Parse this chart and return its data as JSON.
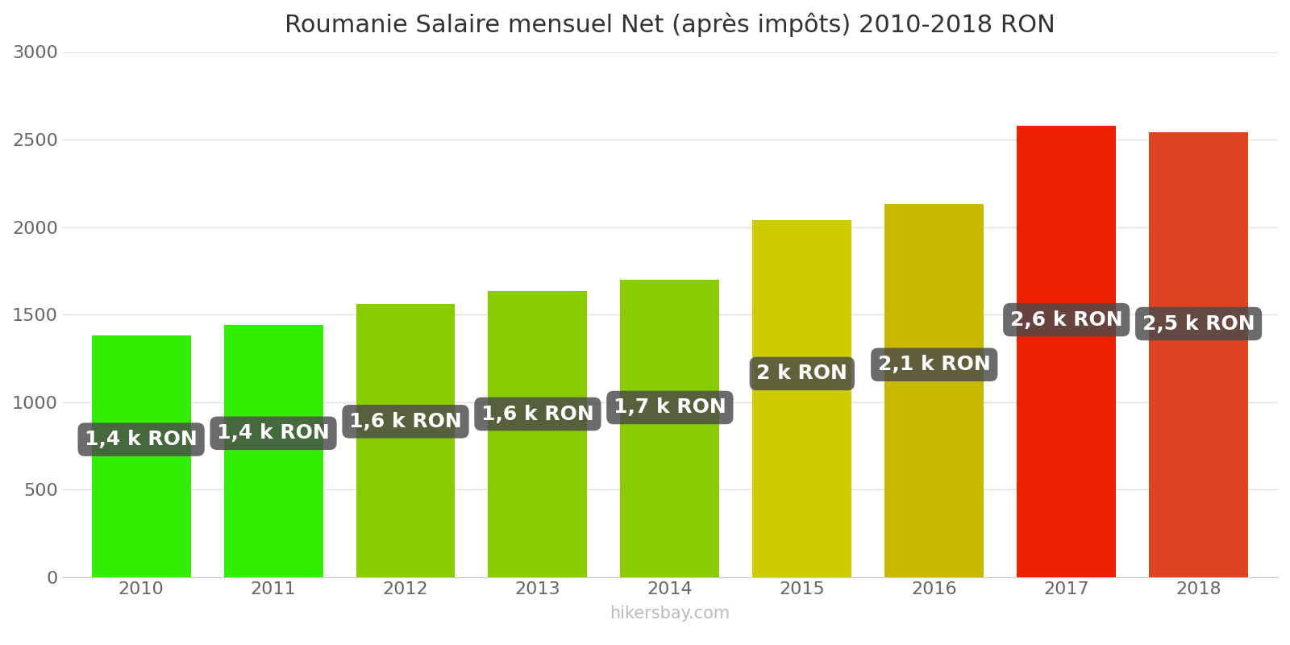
{
  "title": "Roumanie Salaire mensuel Net (après impôts) 2010-2018 RON",
  "years": [
    2010,
    2011,
    2012,
    2013,
    2014,
    2015,
    2016,
    2017,
    2018
  ],
  "values": [
    1380,
    1443,
    1560,
    1635,
    1700,
    2040,
    2130,
    2580,
    2540
  ],
  "bar_colors": [
    "#33ee00",
    "#33ee00",
    "#88cc00",
    "#88cc00",
    "#88cc00",
    "#cccc00",
    "#c8b800",
    "#ee2200",
    "#dd4422"
  ],
  "labels": [
    "1,4 k RON",
    "1,4 k RON",
    "1,6 k RON",
    "1,6 k RON",
    "1,7 k RON",
    "2 k RON",
    "2,1 k RON",
    "2,6 k RON",
    "2,5 k RON"
  ],
  "ylim": [
    0,
    3000
  ],
  "yticks": [
    0,
    500,
    1000,
    1500,
    2000,
    2500,
    3000
  ],
  "watermark": "hikersbay.com",
  "title_fontsize": 22,
  "tick_fontsize": 16,
  "label_fontsize": 18,
  "watermark_fontsize": 15,
  "background_color": "#ffffff",
  "grid_color": "#e0e0e0",
  "bar_width": 0.75
}
